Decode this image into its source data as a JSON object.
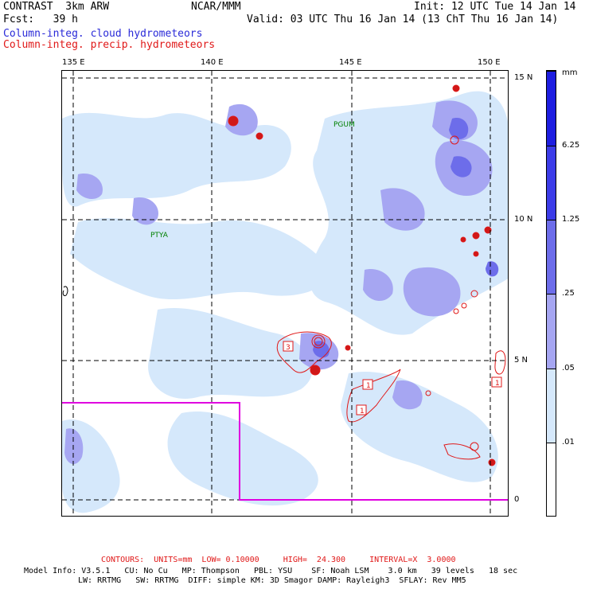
{
  "header": {
    "model_line": "CONTRAST  3km ARW",
    "org": "NCAR/MMM",
    "init": "Init: 12 UTC Tue 14 Jan 14",
    "fcst": "Fcst:   39 h",
    "valid": "Valid: 03 UTC Thu 16 Jan 14 (13 ChT Thu 16 Jan 14)",
    "field1": "Column-integ. cloud hydrometeors",
    "field2": "Column-integ. precip. hydrometeors",
    "field1_color": "#2a2ad8",
    "field2_color": "#e01818"
  },
  "map": {
    "lon_labels": [
      "135 E",
      "140 E",
      "145 E",
      "150 E"
    ],
    "lat_labels": [
      "15 N",
      "10 N",
      "5 N",
      "0"
    ],
    "place_labels": [
      "PGUM",
      "PTYA"
    ],
    "place_label_color": "#008000",
    "boundary_color": "#e000e0",
    "contour_labels": [
      "3",
      "1",
      "1",
      "1"
    ]
  },
  "colorbar": {
    "unit": "mm",
    "levels": [
      "6.25",
      "1.25",
      ".25",
      ".05",
      ".01"
    ],
    "colors": [
      "#1e1ee0",
      "#3c3ce8",
      "#6d6dea",
      "#a6a6f2",
      "#d5e8fb",
      "#ffffff"
    ]
  },
  "footer": {
    "contours": "CONTOURS:  UNITS=mm  LOW= 0.10000     HIGH=  24.300     INTERVAL=X  3.0000",
    "contours_color": "#e01818",
    "model_info": "Model Info: V3.5.1   CU: No Cu   MP: Thompson   PBL: YSU    SF: Noah LSM    3.0 km   39 levels   18 sec",
    "model_info2": "LW: RRTMG   SW: RRTMG  DIFF: simple KM: 3D Smagor DAMP: Rayleigh3  SFLAY: Rev MM5"
  }
}
